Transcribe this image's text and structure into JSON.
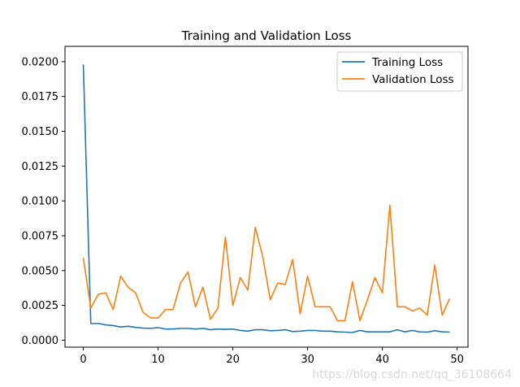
{
  "chart_data": {
    "type": "line",
    "title": "Training and Validation Loss",
    "xlabel": "",
    "ylabel": "",
    "xlim": [
      -2.45,
      51.45
    ],
    "ylim": [
      -0.0005,
      0.0211
    ],
    "x_ticks": [
      0,
      10,
      20,
      30,
      40,
      50
    ],
    "x_tick_labels": [
      "0",
      "10",
      "20",
      "30",
      "40",
      "50"
    ],
    "y_ticks": [
      0.0,
      0.0025,
      0.005,
      0.0075,
      0.01,
      0.0125,
      0.015,
      0.0175,
      0.02
    ],
    "y_tick_labels": [
      "0.0000",
      "0.0025",
      "0.0050",
      "0.0075",
      "0.0100",
      "0.0125",
      "0.0150",
      "0.0175",
      "0.0200"
    ],
    "grid": false,
    "legend_position": "top-right",
    "x": [
      0,
      1,
      2,
      3,
      4,
      5,
      6,
      7,
      8,
      9,
      10,
      11,
      12,
      13,
      14,
      15,
      16,
      17,
      18,
      19,
      20,
      21,
      22,
      23,
      24,
      25,
      26,
      27,
      28,
      29,
      30,
      31,
      32,
      33,
      34,
      35,
      36,
      37,
      38,
      39,
      40,
      41,
      42,
      43,
      44,
      45,
      46,
      47,
      48,
      49
    ],
    "series": [
      {
        "name": "Training Loss",
        "color": "#1f77b4",
        "values": [
          0.0198,
          0.0012,
          0.0012,
          0.0011,
          0.00105,
          0.00095,
          0.001,
          0.00092,
          0.00087,
          0.00085,
          0.0009,
          0.0008,
          0.0008,
          0.00085,
          0.00085,
          0.0008,
          0.00085,
          0.00075,
          0.0008,
          0.00078,
          0.0008,
          0.0007,
          0.00065,
          0.00075,
          0.00075,
          0.00068,
          0.0007,
          0.00075,
          0.00062,
          0.00065,
          0.0007,
          0.0007,
          0.00065,
          0.00065,
          0.0006,
          0.00058,
          0.00055,
          0.0007,
          0.0006,
          0.0006,
          0.0006,
          0.0006,
          0.00075,
          0.0006,
          0.0007,
          0.0006,
          0.00058,
          0.00068,
          0.0006,
          0.00058
        ]
      },
      {
        "name": "Validation Loss",
        "color": "#ff7f0e",
        "values": [
          0.0059,
          0.0023,
          0.0033,
          0.0034,
          0.0022,
          0.0046,
          0.0038,
          0.0034,
          0.002,
          0.0016,
          0.0016,
          0.0022,
          0.0022,
          0.0041,
          0.0049,
          0.0024,
          0.0038,
          0.0015,
          0.0023,
          0.0074,
          0.0025,
          0.0045,
          0.0036,
          0.0081,
          0.006,
          0.0029,
          0.0041,
          0.004,
          0.0058,
          0.0019,
          0.0046,
          0.0024,
          0.0024,
          0.0024,
          0.0014,
          0.0014,
          0.0042,
          0.0014,
          0.0029,
          0.0045,
          0.0034,
          0.0097,
          0.0024,
          0.0024,
          0.0021,
          0.0023,
          0.0018,
          0.0054,
          0.0018,
          0.003
        ]
      }
    ]
  },
  "watermark": "https://blog.csdn.net/qq_36108664"
}
